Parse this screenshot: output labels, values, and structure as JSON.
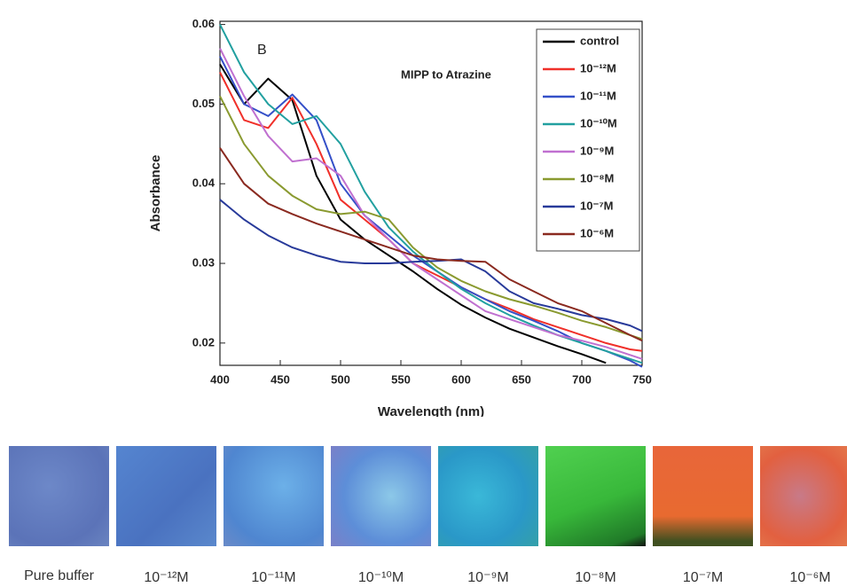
{
  "chart_data": {
    "type": "line",
    "annotations": [
      "B",
      "MIPP to Atrazine"
    ],
    "x_label": "Wavelength (nm)",
    "y_label": "Absorbance",
    "x": [
      400,
      420,
      440,
      460,
      480,
      500,
      520,
      540,
      560,
      580,
      600,
      620,
      640,
      660,
      680,
      700,
      720,
      740,
      750
    ],
    "xlim": [
      400,
      750
    ],
    "xticks": [
      400,
      450,
      500,
      550,
      600,
      650,
      700,
      750
    ],
    "ylim": [
      0.0172,
      0.0604
    ],
    "yticks": [
      0.02,
      0.03,
      0.04,
      0.05,
      0.06
    ],
    "legend": "upper right",
    "series": [
      {
        "name": "control",
        "color": "#000000",
        "values": [
          0.055,
          0.05,
          0.0532,
          0.0505,
          0.041,
          0.0355,
          0.033,
          0.031,
          0.029,
          0.0268,
          0.0248,
          0.0232,
          0.0218,
          0.0207,
          0.0196,
          0.0186,
          0.0175,
          null,
          null
        ]
      },
      {
        "name": "10⁻¹²M",
        "color": "#f0302a",
        "values": [
          0.054,
          0.048,
          0.047,
          0.0508,
          0.045,
          0.038,
          0.0355,
          0.033,
          0.03,
          0.0285,
          0.027,
          0.0255,
          0.0243,
          0.023,
          0.022,
          0.021,
          0.02,
          0.0192,
          0.019
        ]
      },
      {
        "name": "10⁻¹¹M",
        "color": "#3550c8",
        "values": [
          0.056,
          0.05,
          0.0485,
          0.0512,
          0.048,
          0.04,
          0.036,
          0.0335,
          0.031,
          0.029,
          0.027,
          0.0255,
          0.024,
          0.0228,
          0.0215,
          0.02,
          0.019,
          0.0178,
          0.017
        ]
      },
      {
        "name": "10⁻¹⁰M",
        "color": "#22a0a0",
        "values": [
          0.06,
          0.054,
          0.05,
          0.0475,
          0.0485,
          0.045,
          0.039,
          0.0345,
          0.0315,
          0.029,
          0.0268,
          0.025,
          0.0235,
          0.0222,
          0.021,
          0.02,
          0.019,
          0.018,
          0.0175
        ]
      },
      {
        "name": "10⁻⁹M",
        "color": "#c070d0",
        "values": [
          0.057,
          0.051,
          0.046,
          0.0428,
          0.0432,
          0.041,
          0.036,
          0.033,
          0.03,
          0.028,
          0.026,
          0.024,
          0.023,
          0.022,
          0.021,
          0.0203,
          0.0195,
          0.0185,
          0.018
        ]
      },
      {
        "name": "10⁻⁸M",
        "color": "#8a9a30",
        "values": [
          0.051,
          0.045,
          0.041,
          0.0385,
          0.0368,
          0.0362,
          0.0365,
          0.0355,
          0.032,
          0.0295,
          0.0278,
          0.0265,
          0.0255,
          0.0247,
          0.0238,
          0.0228,
          0.022,
          0.021,
          0.0205
        ]
      },
      {
        "name": "10⁻⁷M",
        "color": "#283a9a",
        "values": [
          0.038,
          0.0355,
          0.0335,
          0.032,
          0.031,
          0.0302,
          0.03,
          0.03,
          0.0302,
          0.0303,
          0.0305,
          0.029,
          0.0265,
          0.025,
          0.0243,
          0.0235,
          0.023,
          0.0222,
          0.0215
        ]
      },
      {
        "name": "10⁻⁶M",
        "color": "#8a2a20",
        "values": [
          0.0445,
          0.04,
          0.0375,
          0.0362,
          0.035,
          0.034,
          0.033,
          0.032,
          0.031,
          0.0305,
          0.0303,
          0.0302,
          0.028,
          0.0265,
          0.025,
          0.024,
          0.0225,
          0.021,
          0.0203
        ]
      }
    ]
  },
  "panels": [
    "Pure buffer",
    "10⁻¹²M",
    "10⁻¹¹M",
    "10⁻¹⁰M",
    "10⁻⁹M",
    "10⁻⁸M",
    "10⁻⁷M",
    "10⁻⁶M"
  ]
}
